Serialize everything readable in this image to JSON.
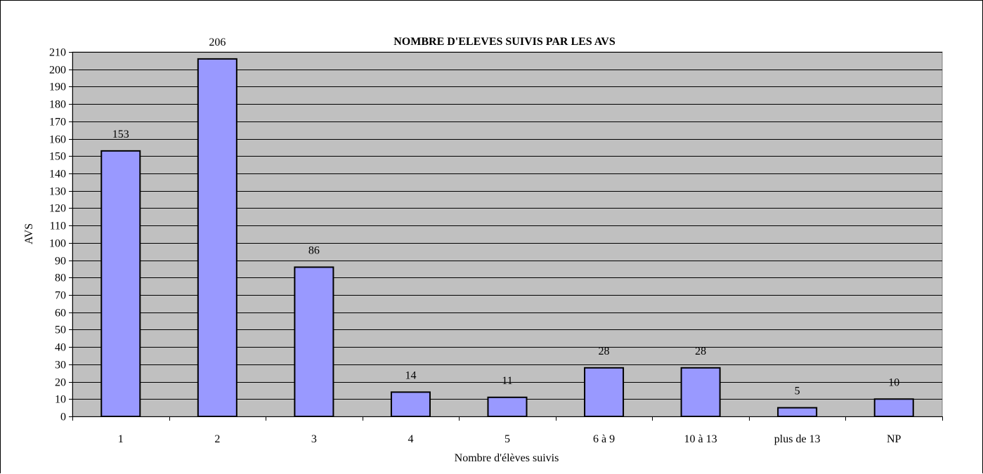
{
  "chart_data": {
    "type": "bar",
    "title": "NOMBRE D'ELEVES SUIVIS PAR LES AVS",
    "xlabel": "Nombre d'élèves suivis",
    "ylabel": "AVS",
    "categories": [
      "1",
      "2",
      "3",
      "4",
      "5",
      "6 à 9",
      "10 à 13",
      "plus de 13",
      "NP"
    ],
    "values": [
      153,
      206,
      86,
      14,
      11,
      28,
      28,
      5,
      10
    ],
    "data_labels": [
      "153",
      "206",
      "86",
      "14",
      "11",
      "28",
      "28",
      "5",
      "10"
    ],
    "ylim": [
      0,
      210
    ],
    "ytick_step": 10,
    "grid": true,
    "legend": "none",
    "colors": {
      "plot_background": "#c0c0c0",
      "bar_fill": "#9999ff",
      "bar_stroke": "#000000",
      "gridline": "#000000"
    }
  }
}
